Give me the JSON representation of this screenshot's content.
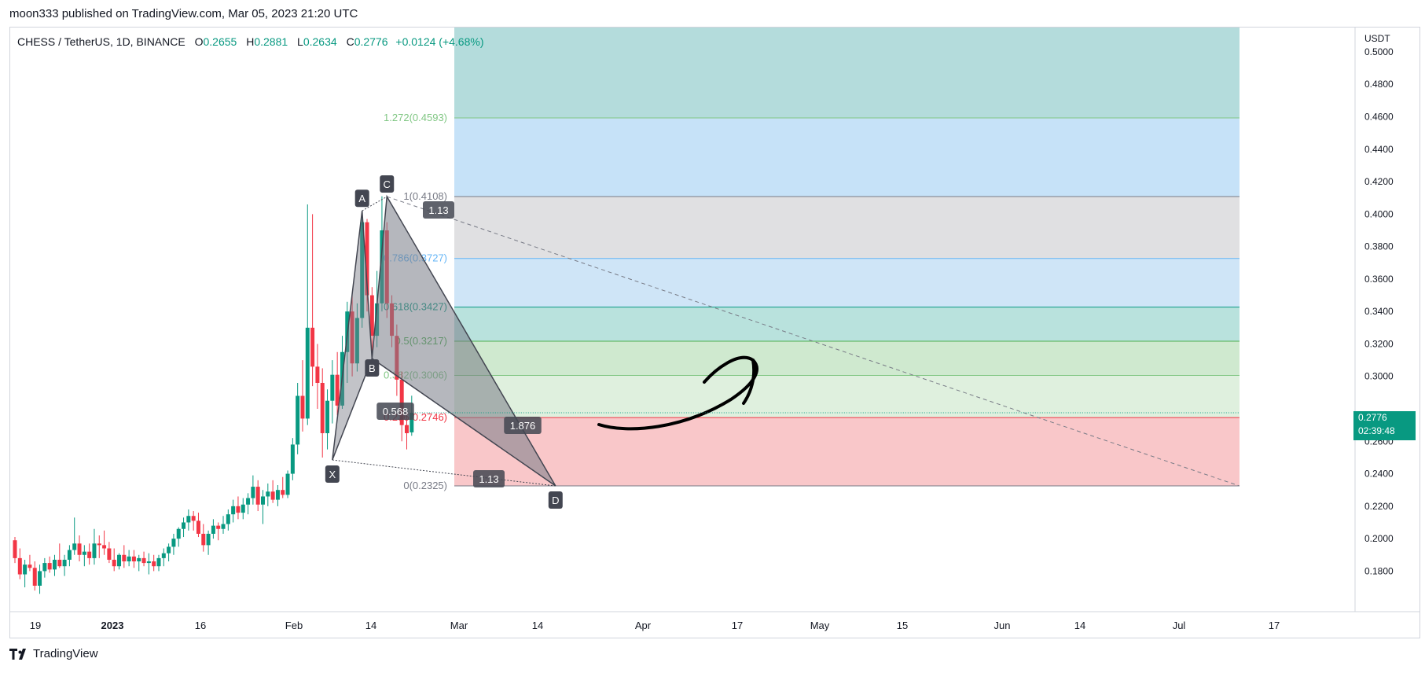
{
  "header": {
    "published": "moon333 published on TradingView.com, Mar 05, 2023 21:20 UTC"
  },
  "footer": {
    "brand": "TradingView"
  },
  "chart_data": {
    "type": "candlestick",
    "symbol_line": {
      "symbol": "CHESS / TetherUS, 1D, BINANCE",
      "o_label": "O",
      "o": "0.2655",
      "h_label": "H",
      "h": "0.2881",
      "l_label": "L",
      "l": "0.2634",
      "c_label": "C",
      "c": "0.2776",
      "change": "+0.0124 (+4.68%)"
    },
    "price_unit": "USDT",
    "y_ticks": [
      "0.5000",
      "0.4800",
      "0.4600",
      "0.4400",
      "0.4200",
      "0.4000",
      "0.3800",
      "0.3600",
      "0.3400",
      "0.3200",
      "0.3000",
      "0.2600",
      "0.2400",
      "0.2200",
      "0.2000",
      "0.1800"
    ],
    "y_tick_values": [
      0.5,
      0.48,
      0.46,
      0.44,
      0.42,
      0.4,
      0.38,
      0.36,
      0.34,
      0.32,
      0.3,
      0.26,
      0.24,
      0.22,
      0.2,
      0.18
    ],
    "ylim": [
      0.155,
      0.515
    ],
    "x_ticks": [
      "19",
      "2023",
      "16",
      "Feb",
      "14",
      "Mar",
      "14",
      "Apr",
      "17",
      "May",
      "15",
      "Jun",
      "14",
      "Jul",
      "17"
    ],
    "current_price": {
      "value": 0.2776,
      "label": "0.2776",
      "countdown": "02:39:48"
    },
    "candles_up_color": "#089981",
    "candles_down_color": "#f23645",
    "candles": [
      [
        0.199,
        0.201,
        0.185,
        0.188
      ],
      [
        0.188,
        0.194,
        0.175,
        0.178
      ],
      [
        0.178,
        0.187,
        0.17,
        0.184
      ],
      [
        0.184,
        0.19,
        0.18,
        0.182
      ],
      [
        0.182,
        0.186,
        0.168,
        0.171
      ],
      [
        0.171,
        0.184,
        0.166,
        0.18
      ],
      [
        0.18,
        0.188,
        0.176,
        0.185
      ],
      [
        0.185,
        0.189,
        0.179,
        0.181
      ],
      [
        0.181,
        0.19,
        0.177,
        0.187
      ],
      [
        0.187,
        0.197,
        0.182,
        0.183
      ],
      [
        0.183,
        0.19,
        0.177,
        0.187
      ],
      [
        0.187,
        0.196,
        0.183,
        0.193
      ],
      [
        0.193,
        0.213,
        0.19,
        0.197
      ],
      [
        0.197,
        0.202,
        0.186,
        0.19
      ],
      [
        0.19,
        0.196,
        0.183,
        0.192
      ],
      [
        0.192,
        0.197,
        0.184,
        0.188
      ],
      [
        0.188,
        0.206,
        0.184,
        0.197
      ],
      [
        0.197,
        0.202,
        0.188,
        0.196
      ],
      [
        0.196,
        0.205,
        0.19,
        0.194
      ],
      [
        0.194,
        0.198,
        0.185,
        0.187
      ],
      [
        0.187,
        0.194,
        0.18,
        0.183
      ],
      [
        0.183,
        0.191,
        0.181,
        0.19
      ],
      [
        0.19,
        0.196,
        0.182,
        0.186
      ],
      [
        0.186,
        0.193,
        0.183,
        0.189
      ],
      [
        0.189,
        0.193,
        0.182,
        0.186
      ],
      [
        0.186,
        0.19,
        0.18,
        0.188
      ],
      [
        0.188,
        0.192,
        0.183,
        0.185
      ],
      [
        0.185,
        0.191,
        0.178,
        0.186
      ],
      [
        0.186,
        0.19,
        0.18,
        0.183
      ],
      [
        0.183,
        0.19,
        0.18,
        0.188
      ],
      [
        0.188,
        0.194,
        0.183,
        0.191
      ],
      [
        0.191,
        0.197,
        0.186,
        0.195
      ],
      [
        0.195,
        0.203,
        0.19,
        0.2
      ],
      [
        0.2,
        0.207,
        0.195,
        0.206
      ],
      [
        0.206,
        0.213,
        0.201,
        0.21
      ],
      [
        0.21,
        0.218,
        0.205,
        0.214
      ],
      [
        0.214,
        0.217,
        0.205,
        0.211
      ],
      [
        0.211,
        0.216,
        0.201,
        0.203
      ],
      [
        0.203,
        0.209,
        0.192,
        0.196
      ],
      [
        0.196,
        0.205,
        0.19,
        0.203
      ],
      [
        0.203,
        0.212,
        0.2,
        0.208
      ],
      [
        0.208,
        0.21,
        0.199,
        0.206
      ],
      [
        0.206,
        0.214,
        0.203,
        0.209
      ],
      [
        0.209,
        0.218,
        0.205,
        0.215
      ],
      [
        0.215,
        0.224,
        0.21,
        0.22
      ],
      [
        0.22,
        0.226,
        0.212,
        0.216
      ],
      [
        0.216,
        0.225,
        0.212,
        0.221
      ],
      [
        0.221,
        0.228,
        0.215,
        0.225
      ],
      [
        0.225,
        0.239,
        0.221,
        0.232
      ],
      [
        0.232,
        0.236,
        0.217,
        0.221
      ],
      [
        0.221,
        0.23,
        0.209,
        0.226
      ],
      [
        0.226,
        0.234,
        0.22,
        0.229
      ],
      [
        0.229,
        0.236,
        0.222,
        0.224
      ],
      [
        0.224,
        0.233,
        0.22,
        0.23
      ],
      [
        0.23,
        0.238,
        0.225,
        0.227
      ],
      [
        0.227,
        0.242,
        0.225,
        0.24
      ],
      [
        0.24,
        0.262,
        0.236,
        0.258
      ],
      [
        0.258,
        0.296,
        0.252,
        0.288
      ],
      [
        0.288,
        0.31,
        0.266,
        0.274
      ],
      [
        0.274,
        0.406,
        0.27,
        0.33
      ],
      [
        0.33,
        0.4,
        0.294,
        0.306
      ],
      [
        0.306,
        0.32,
        0.28,
        0.296
      ],
      [
        0.296,
        0.305,
        0.25,
        0.265
      ],
      [
        0.265,
        0.292,
        0.255,
        0.285
      ],
      [
        0.285,
        0.31,
        0.271,
        0.301
      ],
      [
        0.301,
        0.315,
        0.276,
        0.282
      ],
      [
        0.282,
        0.325,
        0.28,
        0.315
      ],
      [
        0.315,
        0.346,
        0.296,
        0.34
      ],
      [
        0.34,
        0.35,
        0.3,
        0.308
      ],
      [
        0.308,
        0.345,
        0.303,
        0.336
      ],
      [
        0.336,
        0.402,
        0.33,
        0.395
      ],
      [
        0.395,
        0.397,
        0.34,
        0.35
      ],
      [
        0.35,
        0.355,
        0.316,
        0.325
      ],
      [
        0.325,
        0.365,
        0.318,
        0.345
      ],
      [
        0.345,
        0.411,
        0.34,
        0.39
      ],
      [
        0.39,
        0.395,
        0.336,
        0.345
      ],
      [
        0.345,
        0.35,
        0.318,
        0.325
      ],
      [
        0.325,
        0.332,
        0.288,
        0.298
      ],
      [
        0.298,
        0.303,
        0.26,
        0.27
      ],
      [
        0.27,
        0.28,
        0.255,
        0.265
      ],
      [
        0.2655,
        0.2881,
        0.2634,
        0.2776
      ]
    ],
    "harmonic_pattern": {
      "points": [
        {
          "label": "X",
          "x_index": 64,
          "y": 0.2485
        },
        {
          "label": "A",
          "x_index": 70,
          "y": 0.402
        },
        {
          "label": "B",
          "x_index": 72,
          "y": 0.311
        },
        {
          "label": "C",
          "x_index": 75,
          "y": 0.4108
        },
        {
          "label": "D",
          "x_index": 109,
          "y": 0.2325
        }
      ],
      "ratios": [
        "0.568",
        "1.13",
        "1.876",
        "1.13"
      ],
      "fill_color": "#787b86"
    },
    "fib_levels": [
      {
        "ratio": "0",
        "price": 0.2325,
        "label": "0(0.2325)",
        "color": "#787b86",
        "band_color": "#f9c7c9"
      },
      {
        "ratio": "0.236",
        "price": 0.2746,
        "label": "0.236(0.2746)",
        "color": "#f23645",
        "band_color": "#dff0de"
      },
      {
        "ratio": "0.382",
        "price": 0.3006,
        "label": "0.382(0.3006)",
        "color": "#81c784",
        "band_color": "#cfe9cf"
      },
      {
        "ratio": "0.5",
        "price": 0.3217,
        "label": "0.5(0.3217)",
        "color": "#4caf50",
        "band_color": "#b9e2dd"
      },
      {
        "ratio": "0.618",
        "price": 0.3427,
        "label": "0.618(0.3427)",
        "color": "#089981",
        "band_color": "#cfe5f7"
      },
      {
        "ratio": "0.786",
        "price": 0.3727,
        "label": "0.786(0.3727)",
        "color": "#64b5f6",
        "band_color": "#e0e0e2"
      },
      {
        "ratio": "1",
        "price": 0.4108,
        "label": "1(0.4108)",
        "color": "#787b86",
        "band_color": "#c6e2f8"
      },
      {
        "ratio": "1.272",
        "price": 0.4593,
        "label": "1.272(0.4593)",
        "color": "#81c784",
        "band_color": "#b4dcdc"
      }
    ],
    "annotations": [
      "hand-drawn-arrow-up",
      "dashed-trend-line"
    ]
  }
}
